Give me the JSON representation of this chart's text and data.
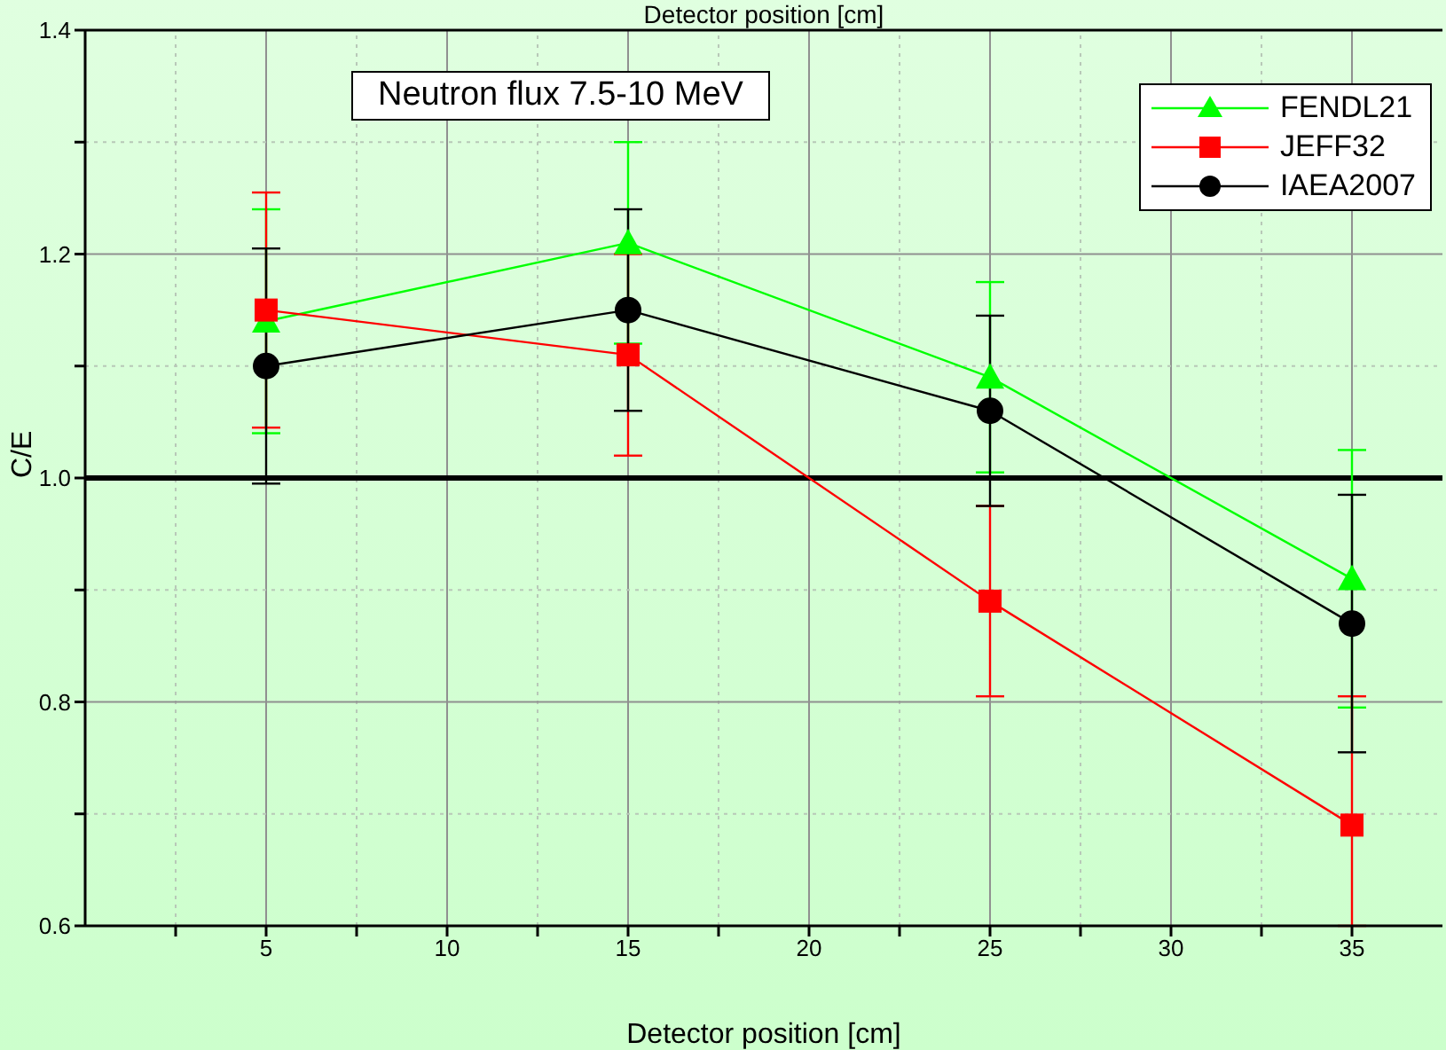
{
  "chart_data": {
    "type": "line",
    "title": "Neutron flux 7.5-10 MeV",
    "xlabel": "Detector position [cm]",
    "x2label": "Detector position [cm]",
    "ylabel": "C/E",
    "x": [
      5,
      15,
      25,
      35
    ],
    "series": [
      {
        "name": "FENDL21",
        "color": "#00ff00",
        "marker": "triangle",
        "values": [
          1.14,
          1.21,
          1.09,
          0.91
        ],
        "errors": [
          0.1,
          0.09,
          0.085,
          0.115
        ]
      },
      {
        "name": "JEFF32",
        "color": "#ff0000",
        "marker": "square",
        "values": [
          1.15,
          1.11,
          0.89,
          0.69
        ],
        "errors": [
          0.105,
          0.09,
          0.085,
          [
            0.6,
            0.805
          ]
        ]
      },
      {
        "name": "IAEA2007",
        "color": "#000000",
        "marker": "circle",
        "values": [
          1.1,
          1.15,
          1.06,
          0.87
        ],
        "errors": [
          0.105,
          0.09,
          0.085,
          0.115
        ]
      }
    ],
    "xlim": [
      0,
      37.5
    ],
    "xticks": [
      {
        "value": 2.5,
        "label": null
      },
      5,
      {
        "value": 7.5,
        "label": null
      },
      10,
      {
        "value": 12.5,
        "label": null
      },
      15,
      {
        "value": 17.5,
        "label": null
      },
      20,
      {
        "value": 22.5,
        "label": null
      },
      25,
      {
        "value": 27.5,
        "label": null
      },
      30,
      {
        "value": 32.5,
        "label": null
      },
      35
    ],
    "ylim": [
      0.6,
      1.4
    ],
    "yticks": [
      0.6,
      {
        "value": 0.7,
        "label": null
      },
      0.8,
      {
        "value": 0.9,
        "label": null
      },
      {
        "value": 1.0,
        "label": "1.0"
      },
      {
        "value": 1.1,
        "label": null
      },
      1.2,
      {
        "value": 1.3,
        "label": null
      },
      1.4
    ],
    "ref_lines": [
      {
        "axis": "y",
        "value": 1.0,
        "color": "#000000"
      }
    ],
    "grid": true,
    "legend": "top right",
    "line_style": "solid"
  }
}
